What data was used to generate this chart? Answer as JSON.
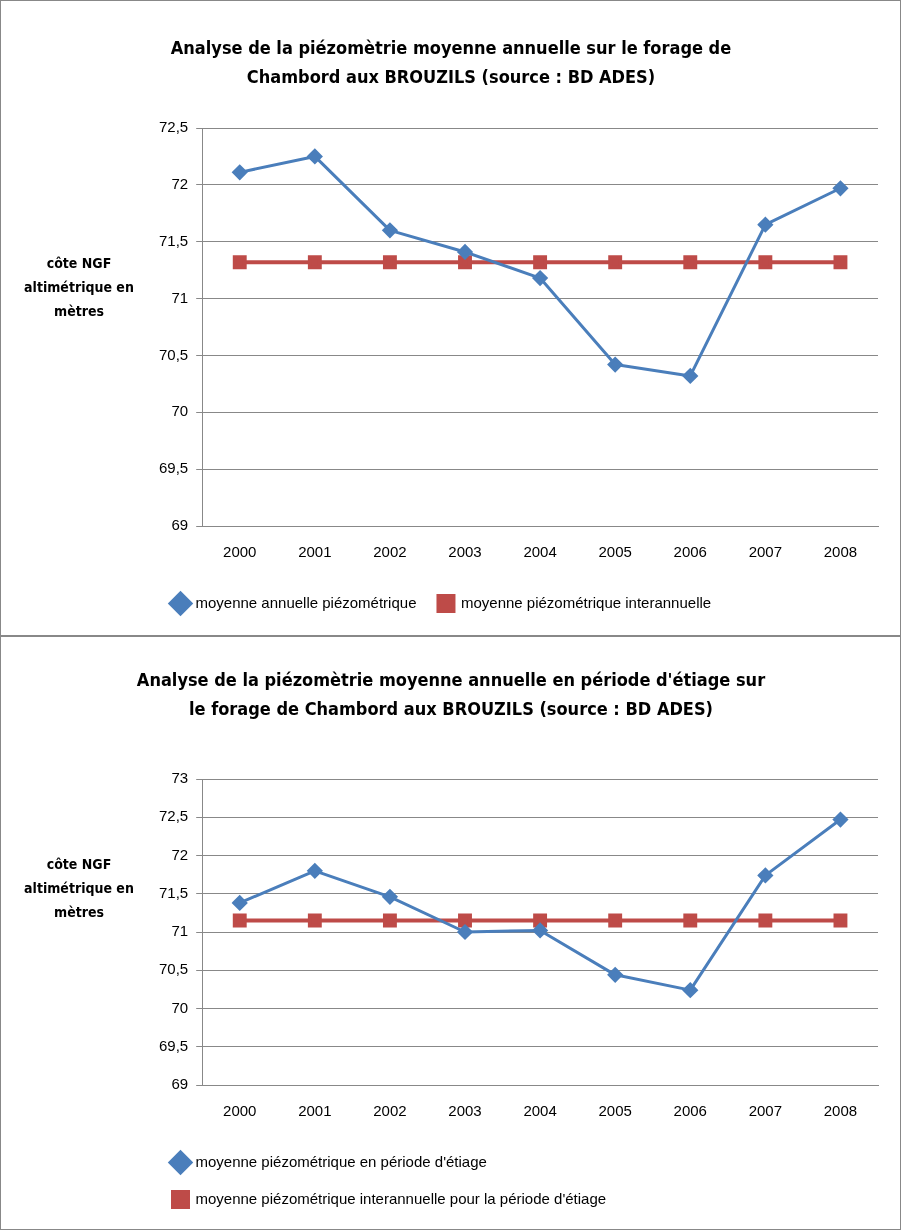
{
  "chart_data": [
    {
      "type": "line",
      "title": "Analyse de la piézomètrie moyenne annuelle sur le forage de Chambord aux BROUZILS (source : BD ADES)",
      "ylabel": "côte NGF altimétrique en mètres",
      "categories": [
        "2000",
        "2001",
        "2002",
        "2003",
        "2004",
        "2005",
        "2006",
        "2007",
        "2008"
      ],
      "ylim": [
        69,
        72.5
      ],
      "yticks": [
        69,
        {
          "value": 69.5,
          "label": "69,5"
        },
        70,
        {
          "value": 70.5,
          "label": "70,5"
        },
        71,
        {
          "value": 71.5,
          "label": "71,5"
        },
        72,
        {
          "value": 72.5,
          "label": "72,5"
        }
      ],
      "grid": "y",
      "legend": "bottom",
      "series": [
        {
          "name": "moyenne annuelle piézométrique",
          "color": "#4a7ebb",
          "marker": "diamond",
          "values": [
            72.11,
            72.25,
            71.6,
            71.41,
            71.18,
            70.42,
            70.32,
            71.65,
            71.97
          ]
        },
        {
          "name": "moyenne piézométrique interannuelle",
          "color": "#be4b48",
          "marker": "square",
          "values": [
            71.32,
            71.32,
            71.32,
            71.32,
            71.32,
            71.32,
            71.32,
            71.32,
            71.32
          ]
        }
      ]
    },
    {
      "type": "line",
      "title": "Analyse de la piézomètrie moyenne annuelle en période d'étiage sur le forage de Chambord aux BROUZILS (source : BD ADES)",
      "ylabel": "côte NGF altimétrique en mètres",
      "categories": [
        "2000",
        "2001",
        "2002",
        "2003",
        "2004",
        "2005",
        "2006",
        "2007",
        "2008"
      ],
      "ylim": [
        69,
        73
      ],
      "yticks": [
        69,
        {
          "value": 69.5,
          "label": "69,5"
        },
        70,
        {
          "value": 70.5,
          "label": "70,5"
        },
        71,
        {
          "value": 71.5,
          "label": "71,5"
        },
        72,
        {
          "value": 72.5,
          "label": "72,5"
        },
        73
      ],
      "grid": "y",
      "legend": "bottom",
      "series": [
        {
          "name": "moyenne piézométrique en période d'étiage",
          "color": "#4a7ebb",
          "marker": "diamond",
          "values": [
            71.38,
            71.8,
            71.46,
            71.0,
            71.02,
            70.44,
            70.24,
            71.74,
            72.47
          ]
        },
        {
          "name": "moyenne piézométrique interannuelle pour la période d'étiage",
          "color": "#be4b48",
          "marker": "square",
          "values": [
            71.15,
            71.15,
            71.15,
            71.15,
            71.15,
            71.15,
            71.15,
            71.15,
            71.15
          ]
        }
      ]
    }
  ]
}
